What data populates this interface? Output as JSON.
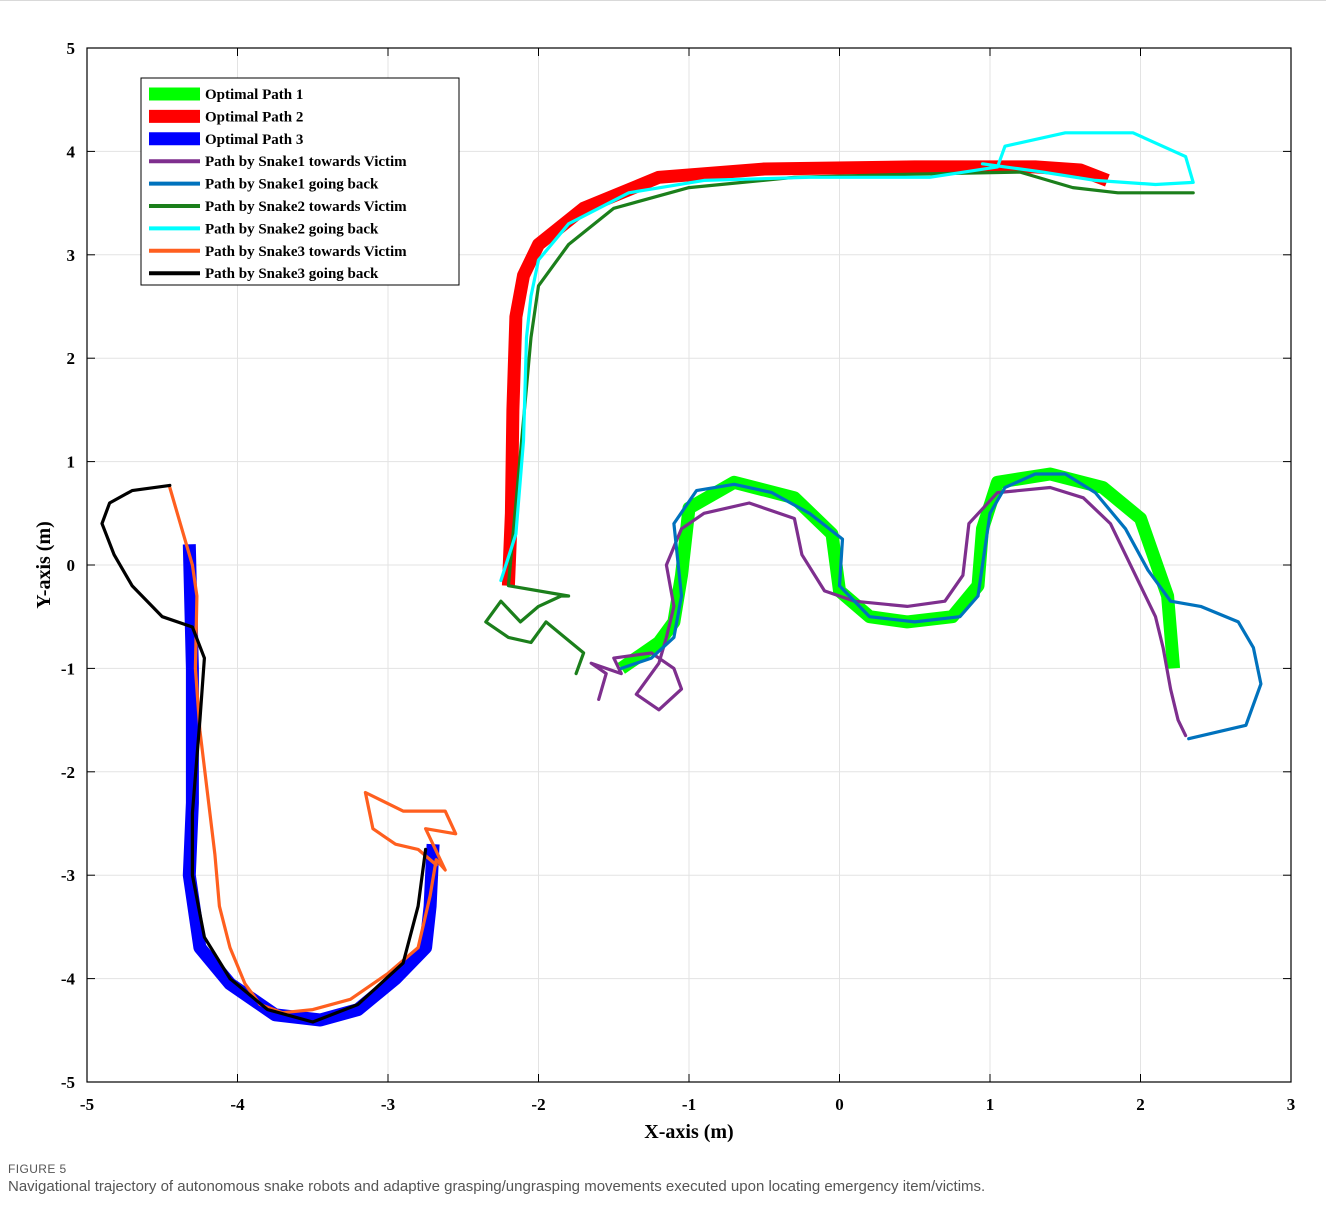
{
  "figure": {
    "label": "FIGURE 5",
    "caption": "Navigational trajectory of autonomous snake robots and adaptive grasping/ungrasping movements executed upon locating emergency item/victims."
  },
  "chart_data": {
    "type": "line",
    "xlabel": "X-axis (m)",
    "ylabel": "Y-axis (m)",
    "xlim": [
      -5,
      3
    ],
    "ylim": [
      -5,
      5
    ],
    "xticks": [
      -5,
      -4,
      -3,
      -2,
      -1,
      0,
      1,
      2,
      3
    ],
    "yticks": [
      -5,
      -4,
      -3,
      -2,
      -1,
      0,
      1,
      2,
      3,
      4,
      5
    ],
    "xtick_labels": [
      "-5",
      "-4",
      "-3",
      "-2",
      "-1",
      "0",
      "1",
      "2",
      "3"
    ],
    "ytick_labels": [
      "-5",
      "-4",
      "-3",
      "-2",
      "-1",
      "0",
      "1",
      "2",
      "3",
      "4",
      "5"
    ],
    "grid": true,
    "legend_position": "top-left",
    "series": [
      {
        "name": "Optimal Path 1",
        "color": "#00ff00",
        "style": "thick",
        "x": [
          -1.45,
          -1.2,
          -1.1,
          -1.05,
          -1.0,
          -0.7,
          -0.3,
          -0.05,
          0.0,
          0.2,
          0.45,
          0.75,
          0.92,
          0.95,
          1.05,
          1.4,
          1.75,
          2.0,
          2.18,
          2.22
        ],
        "y": [
          -1.0,
          -0.75,
          -0.55,
          -0.1,
          0.55,
          0.8,
          0.65,
          0.3,
          -0.25,
          -0.5,
          -0.55,
          -0.5,
          -0.2,
          0.35,
          0.8,
          0.88,
          0.75,
          0.45,
          -0.3,
          -1.0
        ]
      },
      {
        "name": "Optimal Path 2",
        "color": "#ff0000",
        "style": "thick",
        "x": [
          -2.2,
          -2.18,
          -2.17,
          -2.15,
          -2.1,
          -2.0,
          -1.7,
          -1.2,
          -0.5,
          0.5,
          1.3,
          1.6,
          1.78
        ],
        "y": [
          -0.2,
          0.5,
          1.5,
          2.4,
          2.8,
          3.1,
          3.45,
          3.75,
          3.83,
          3.85,
          3.85,
          3.82,
          3.72
        ]
      },
      {
        "name": "Optimal Path 3",
        "color": "#0000ff",
        "style": "thick",
        "x": [
          -4.32,
          -4.3,
          -4.3,
          -4.32,
          -4.25,
          -4.05,
          -3.75,
          -3.45,
          -3.2,
          -2.95,
          -2.75,
          -2.72,
          -2.7
        ],
        "y": [
          0.2,
          -1.0,
          -2.3,
          -3.0,
          -3.7,
          -4.05,
          -4.35,
          -4.4,
          -4.3,
          -4.0,
          -3.7,
          -3.3,
          -2.7
        ]
      },
      {
        "name": "Path by Snake1 towards Victim",
        "color": "#7e2f8e",
        "style": "line",
        "x": [
          -1.6,
          -1.55,
          -1.65,
          -1.45,
          -1.5,
          -1.25,
          -1.1,
          -1.05,
          -1.2,
          -1.35,
          -1.2,
          -1.15,
          -1.1,
          -1.15,
          -1.05,
          -0.9,
          -0.6,
          -0.3,
          -0.25,
          -0.1,
          0.1,
          0.45,
          0.7,
          0.82,
          0.86,
          1.05,
          1.4,
          1.62,
          1.8,
          1.9,
          2.0,
          2.1,
          2.15,
          2.2,
          2.25,
          2.3
        ],
        "y": [
          -1.3,
          -1.05,
          -0.95,
          -1.05,
          -0.9,
          -0.85,
          -1.0,
          -1.2,
          -1.4,
          -1.25,
          -0.95,
          -0.7,
          -0.4,
          0.0,
          0.35,
          0.5,
          0.6,
          0.45,
          0.1,
          -0.25,
          -0.35,
          -0.4,
          -0.35,
          -0.1,
          0.4,
          0.7,
          0.75,
          0.65,
          0.4,
          0.1,
          -0.2,
          -0.5,
          -0.8,
          -1.2,
          -1.5,
          -1.65
        ]
      },
      {
        "name": "Path by Snake1 going back",
        "color": "#0072bd",
        "style": "line",
        "x": [
          2.32,
          2.7,
          2.8,
          2.75,
          2.65,
          2.4,
          2.2,
          2.05,
          1.9,
          1.7,
          1.5,
          1.3,
          1.1,
          1.0,
          0.95,
          0.92,
          0.8,
          0.5,
          0.2,
          0.0,
          0.02,
          -0.2,
          -0.45,
          -0.7,
          -0.95,
          -1.1,
          -1.05,
          -1.1,
          -1.25,
          -1.45
        ],
        "y": [
          -1.68,
          -1.55,
          -1.15,
          -0.8,
          -0.55,
          -0.4,
          -0.35,
          -0.05,
          0.35,
          0.7,
          0.88,
          0.88,
          0.75,
          0.5,
          0.0,
          -0.3,
          -0.5,
          -0.55,
          -0.5,
          -0.2,
          0.25,
          0.5,
          0.7,
          0.78,
          0.72,
          0.4,
          -0.3,
          -0.7,
          -0.9,
          -1.0
        ]
      },
      {
        "name": "Path by Snake2 towards Victim",
        "color": "#1b7f1b",
        "style": "line",
        "x": [
          -1.75,
          -1.7,
          -1.95,
          -2.05,
          -2.2,
          -2.35,
          -2.25,
          -2.12,
          -2.0,
          -1.85,
          -1.8,
          -2.2,
          -2.15,
          -2.1,
          -2.05,
          -2.0,
          -1.8,
          -1.5,
          -1.0,
          -0.3,
          0.5,
          1.2,
          1.55,
          1.85,
          2.1,
          2.35
        ],
        "y": [
          -1.05,
          -0.85,
          -0.55,
          -0.75,
          -0.7,
          -0.55,
          -0.35,
          -0.55,
          -0.4,
          -0.3,
          -0.3,
          -0.2,
          0.6,
          1.4,
          2.2,
          2.7,
          3.1,
          3.45,
          3.65,
          3.75,
          3.78,
          3.8,
          3.65,
          3.6,
          3.6,
          3.6
        ]
      },
      {
        "name": "Path by Snake2 going back",
        "color": "#00ffff",
        "style": "line",
        "x": [
          -2.25,
          -2.15,
          -2.1,
          -2.08,
          -2.05,
          -2.0,
          -1.8,
          -1.4,
          -0.9,
          -0.2,
          0.6,
          1.05,
          1.1,
          1.5,
          1.95,
          2.3,
          2.35,
          2.1,
          1.7,
          1.35,
          1.1,
          0.95
        ],
        "y": [
          -0.15,
          0.3,
          1.2,
          2.2,
          2.6,
          2.95,
          3.3,
          3.6,
          3.72,
          3.75,
          3.75,
          3.85,
          4.05,
          4.18,
          4.18,
          3.95,
          3.7,
          3.68,
          3.72,
          3.8,
          3.85,
          3.88
        ]
      },
      {
        "name": "Path by Snake3 towards Victim",
        "color": "#ff5f1f",
        "style": "line",
        "x": [
          -4.45,
          -4.38,
          -4.3,
          -4.27,
          -4.28,
          -4.25,
          -4.2,
          -4.15,
          -4.12,
          -4.05,
          -3.95,
          -3.85,
          -3.7,
          -3.5,
          -3.25,
          -3.0,
          -2.8,
          -2.72,
          -2.68,
          -2.62,
          -2.75,
          -2.55,
          -2.62,
          -2.9,
          -3.15,
          -3.1,
          -2.95,
          -2.8,
          -2.68
        ],
        "y": [
          0.75,
          0.4,
          0.0,
          -0.3,
          -1.0,
          -1.6,
          -2.2,
          -2.8,
          -3.3,
          -3.7,
          -4.05,
          -4.25,
          -4.33,
          -4.3,
          -4.2,
          -3.95,
          -3.7,
          -3.2,
          -2.85,
          -2.95,
          -2.55,
          -2.6,
          -2.38,
          -2.38,
          -2.2,
          -2.55,
          -2.7,
          -2.75,
          -2.9
        ]
      },
      {
        "name": "Path by Snake3 going back",
        "color": "#000000",
        "style": "line",
        "x": [
          -2.75,
          -2.8,
          -2.9,
          -3.2,
          -3.5,
          -3.8,
          -4.05,
          -4.22,
          -4.3,
          -4.3,
          -4.25,
          -4.22,
          -4.3,
          -4.5,
          -4.7,
          -4.82,
          -4.9,
          -4.85,
          -4.7,
          -4.45
        ],
        "y": [
          -2.75,
          -3.3,
          -3.85,
          -4.25,
          -4.42,
          -4.3,
          -4.0,
          -3.6,
          -3.0,
          -2.4,
          -1.5,
          -0.9,
          -0.6,
          -0.5,
          -0.2,
          0.1,
          0.4,
          0.6,
          0.72,
          0.77
        ]
      }
    ]
  }
}
